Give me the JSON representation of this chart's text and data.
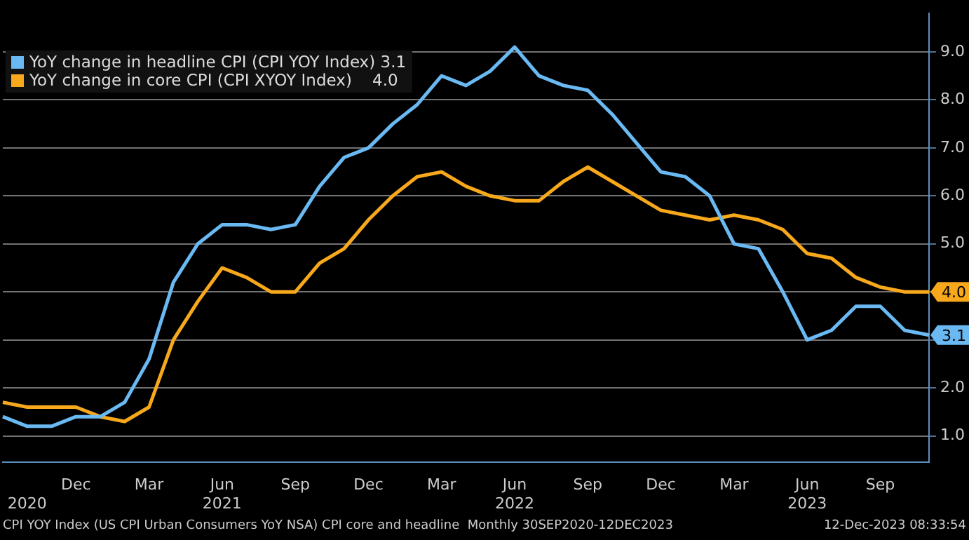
{
  "chart_data": {
    "type": "line",
    "categories": [
      null,
      "\n2020",
      null,
      "Dec",
      null,
      null,
      "Mar",
      null,
      null,
      "Jun\n2021",
      null,
      null,
      "Sep",
      null,
      null,
      "Dec",
      null,
      null,
      "Mar",
      null,
      null,
      "Jun\n2022",
      null,
      null,
      "Sep",
      null,
      null,
      "Dec",
      null,
      null,
      "Mar",
      null,
      null,
      "Jun\n2023",
      null,
      null,
      "Sep",
      null,
      null
    ],
    "series": [
      {
        "name": "YoY change in headline CPI (CPI YOY Index) 3.1",
        "color": "#6ab9f2",
        "values": [
          1.4,
          1.2,
          1.2,
          1.4,
          1.4,
          1.7,
          2.6,
          4.2,
          5.0,
          5.4,
          5.4,
          5.3,
          5.4,
          6.2,
          6.8,
          7.0,
          7.5,
          7.9,
          8.5,
          8.3,
          8.6,
          9.1,
          8.5,
          8.3,
          8.2,
          7.7,
          7.1,
          6.5,
          6.4,
          6.0,
          5.0,
          4.9,
          4.0,
          3.0,
          3.2,
          3.7,
          3.7,
          3.2,
          3.1
        ],
        "value_labels": [
          null,
          null,
          null,
          null,
          null,
          null,
          null,
          null,
          null,
          null,
          null,
          null,
          null,
          null,
          null,
          null,
          null,
          null,
          null,
          null,
          null,
          null,
          null,
          null,
          null,
          null,
          null,
          null,
          null,
          null,
          null,
          null,
          null,
          null,
          null,
          null,
          null,
          null,
          "3.1"
        ]
      },
      {
        "name": "YoY change in core CPI (CPI XYOY Index)    4.0",
        "color": "#f7a81b",
        "values": [
          1.7,
          1.6,
          1.6,
          1.6,
          1.4,
          1.3,
          1.6,
          3.0,
          3.8,
          4.5,
          4.3,
          4.0,
          4.0,
          4.6,
          4.9,
          5.5,
          6.0,
          6.4,
          6.5,
          6.2,
          6.0,
          5.9,
          5.9,
          6.3,
          6.6,
          6.3,
          6.0,
          5.7,
          5.6,
          5.5,
          5.6,
          5.5,
          5.3,
          4.8,
          4.7,
          4.3,
          4.1,
          4.0,
          4.0
        ],
        "value_labels": [
          null,
          null,
          null,
          null,
          null,
          null,
          null,
          null,
          null,
          null,
          null,
          null,
          null,
          null,
          null,
          null,
          null,
          null,
          null,
          null,
          null,
          null,
          null,
          null,
          null,
          null,
          null,
          null,
          null,
          null,
          null,
          null,
          null,
          null,
          null,
          null,
          null,
          null,
          "4.0"
        ]
      }
    ],
    "ylim": [
      0.45,
      9.8
    ],
    "yticks": [
      {
        "value": 1,
        "label": "1.0"
      },
      {
        "value": 2,
        "label": "2.0"
      },
      {
        "value": 3,
        "label": null
      },
      {
        "value": 4,
        "label": null
      },
      {
        "value": 5,
        "label": "5.0"
      },
      {
        "value": 6,
        "label": "6.0"
      },
      {
        "value": 7,
        "label": "7.0"
      },
      {
        "value": 8,
        "label": "8.0"
      },
      {
        "value": 9,
        "label": "9.0"
      }
    ],
    "grid": "y",
    "legend": "top left",
    "marker": "none",
    "line_style": "solid",
    "annotations": [
      "CPI YOY Index (US CPI Urban Consumers YoY NSA) CPI core and headline  Monthly 30SEP2020-12DEC2023",
      "12-Dec-2023 08:33:54"
    ]
  }
}
